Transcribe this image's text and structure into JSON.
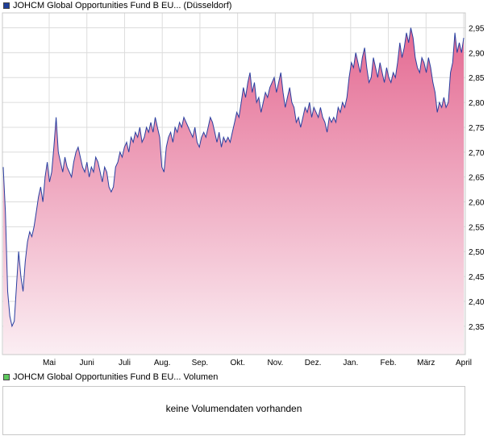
{
  "legend_price": {
    "label": "JOHCM Global Opportunities Fund B EU...  (Düsseldorf)",
    "color": "#1f3f99"
  },
  "legend_volume": {
    "label": "JOHCM Global Opportunities Fund B EU...  Volumen",
    "color": "#5ec95e"
  },
  "volume_panel": {
    "message": "keine Volumendaten vorhanden"
  },
  "colors": {
    "line": "#2a3fa0",
    "fill_top": "#e46a92",
    "fill_bottom": "#fbeef3",
    "grid": "#dcdcdc",
    "frame": "#c8c8c8"
  },
  "chart_data": {
    "type": "area",
    "series": [
      {
        "values": [
          2.67,
          2.58,
          2.42,
          2.37,
          2.35,
          2.36,
          2.43,
          2.5,
          2.45,
          2.42,
          2.48,
          2.52,
          2.54,
          2.53,
          2.55,
          2.58,
          2.61,
          2.63,
          2.6,
          2.65,
          2.68,
          2.64,
          2.66,
          2.71,
          2.77,
          2.7,
          2.68,
          2.66,
          2.69,
          2.67,
          2.66,
          2.65,
          2.68,
          2.7,
          2.71,
          2.69,
          2.67,
          2.66,
          2.68,
          2.65,
          2.67,
          2.66,
          2.69,
          2.68,
          2.66,
          2.64,
          2.67,
          2.66,
          2.63,
          2.62,
          2.63,
          2.67,
          2.68,
          2.7,
          2.69,
          2.71,
          2.72,
          2.7,
          2.73,
          2.72,
          2.74,
          2.73,
          2.75,
          2.72,
          2.73,
          2.75,
          2.74,
          2.76,
          2.74,
          2.77,
          2.75,
          2.73,
          2.67,
          2.66,
          2.71,
          2.73,
          2.74,
          2.72,
          2.75,
          2.74,
          2.76,
          2.75,
          2.77,
          2.76,
          2.75,
          2.74,
          2.73,
          2.75,
          2.72,
          2.71,
          2.73,
          2.74,
          2.73,
          2.75,
          2.77,
          2.76,
          2.74,
          2.72,
          2.74,
          2.71,
          2.73,
          2.72,
          2.73,
          2.72,
          2.74,
          2.76,
          2.78,
          2.77,
          2.8,
          2.83,
          2.81,
          2.84,
          2.86,
          2.82,
          2.84,
          2.8,
          2.81,
          2.78,
          2.8,
          2.82,
          2.81,
          2.83,
          2.84,
          2.85,
          2.82,
          2.84,
          2.86,
          2.82,
          2.79,
          2.81,
          2.83,
          2.8,
          2.79,
          2.76,
          2.77,
          2.75,
          2.77,
          2.79,
          2.78,
          2.8,
          2.77,
          2.79,
          2.78,
          2.77,
          2.79,
          2.77,
          2.76,
          2.74,
          2.77,
          2.76,
          2.77,
          2.76,
          2.79,
          2.78,
          2.8,
          2.79,
          2.81,
          2.85,
          2.88,
          2.87,
          2.9,
          2.88,
          2.86,
          2.89,
          2.91,
          2.87,
          2.84,
          2.85,
          2.89,
          2.87,
          2.85,
          2.88,
          2.86,
          2.84,
          2.87,
          2.85,
          2.84,
          2.86,
          2.85,
          2.88,
          2.92,
          2.89,
          2.91,
          2.94,
          2.92,
          2.95,
          2.93,
          2.89,
          2.87,
          2.86,
          2.89,
          2.88,
          2.86,
          2.89,
          2.87,
          2.84,
          2.82,
          2.78,
          2.8,
          2.79,
          2.81,
          2.79,
          2.8,
          2.86,
          2.88,
          2.94,
          2.9,
          2.92,
          2.9,
          2.93
        ]
      }
    ],
    "x_tick_labels": [
      "Mai",
      "Juni",
      "Juli",
      "Aug.",
      "Sep.",
      "Okt.",
      "Nov.",
      "Dez.",
      "Jan.",
      "Feb.",
      "März",
      "April"
    ],
    "y_ticks": [
      2.35,
      2.4,
      2.45,
      2.5,
      2.55,
      2.6,
      2.65,
      2.7,
      2.75,
      2.8,
      2.85,
      2.9,
      2.95
    ],
    "ylim": [
      2.293,
      2.98
    ],
    "grid": true
  }
}
